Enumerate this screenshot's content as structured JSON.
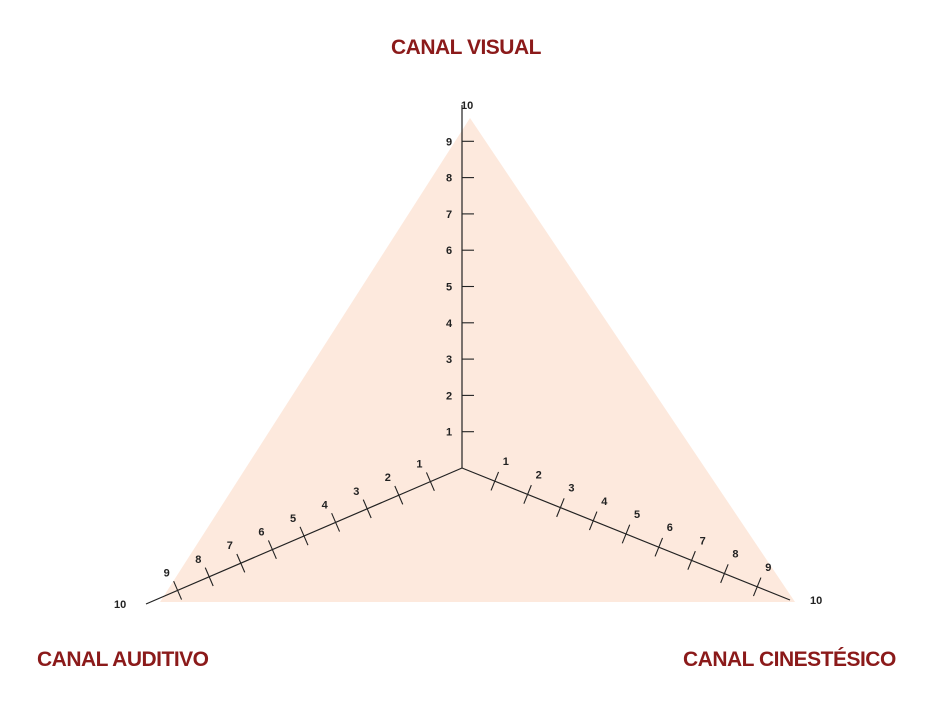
{
  "colors": {
    "title": "#8b1a1a",
    "fill": "#fde9dd",
    "axis": "#222222"
  },
  "titles": {
    "visual": "CANAL VISUAL",
    "auditivo": "CANAL AUDITIVO",
    "cinestesico": "CANAL CINESTÉSICO"
  },
  "axes": [
    {
      "name": "visual",
      "labels": [
        "1",
        "2",
        "3",
        "4",
        "5",
        "6",
        "7",
        "8",
        "9",
        "10"
      ]
    },
    {
      "name": "auditivo",
      "labels": [
        "1",
        "2",
        "3",
        "4",
        "5",
        "6",
        "7",
        "8",
        "9",
        "10"
      ]
    },
    {
      "name": "cinestesico",
      "labels": [
        "1",
        "2",
        "3",
        "4",
        "5",
        "6",
        "7",
        "8",
        "9",
        "10"
      ]
    }
  ],
  "scale_max": 10
}
